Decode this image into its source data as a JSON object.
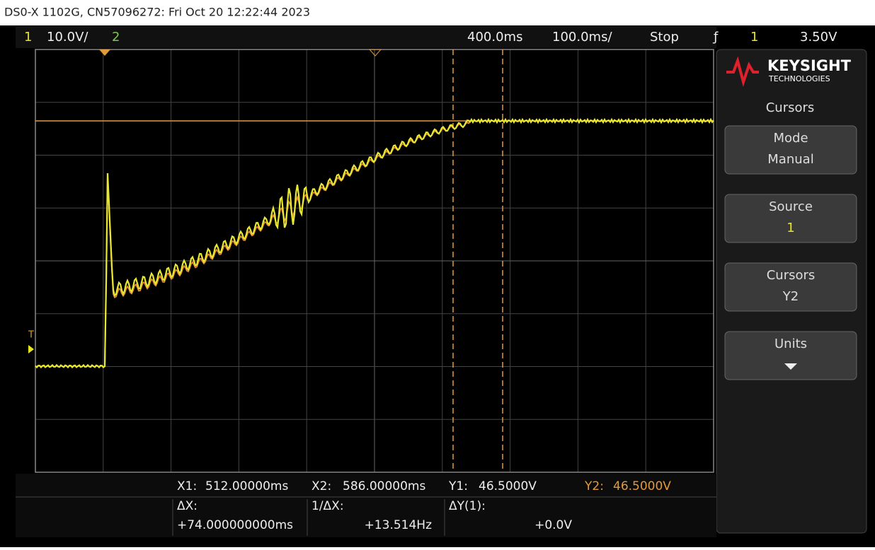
{
  "header": {
    "title": "DS0-X 1102G, CN57096272: Fri Oct 20 12:22:44 2023"
  },
  "status": {
    "ch1": "1",
    "ch1_scale": "10.0V/",
    "ch2": "2",
    "delay": "400.0ms",
    "timebase": "100.0ms/",
    "run_state": "Stop",
    "trigger_source": "1",
    "trigger_level": "3.50V"
  },
  "markers": {
    "trigger": "T"
  },
  "panel": {
    "brand": "KEYSIGHT",
    "brand_sub": "TECHNOLOGIES",
    "menu_title": "Cursors",
    "buttons": [
      {
        "label": "Mode",
        "value": "Manual"
      },
      {
        "label": "Source",
        "value": "1"
      },
      {
        "label": "Cursors",
        "value": "Y2"
      },
      {
        "label": "Units"
      }
    ]
  },
  "measurements": {
    "row1": [
      {
        "label": "X1:",
        "value": "512.00000ms"
      },
      {
        "label": "X2:",
        "value": "586.00000ms"
      },
      {
        "label": "Y1:",
        "value": "46.5000V"
      },
      {
        "label": "Y2:",
        "value": "46.5000V"
      }
    ],
    "row2": [
      {
        "label": "ΔX:",
        "value": "+74.000000000ms"
      },
      {
        "label": "1/ΔX:",
        "value": "+13.514Hz"
      },
      {
        "label": "ΔY(1):",
        "value": "+0.0V"
      }
    ]
  }
}
